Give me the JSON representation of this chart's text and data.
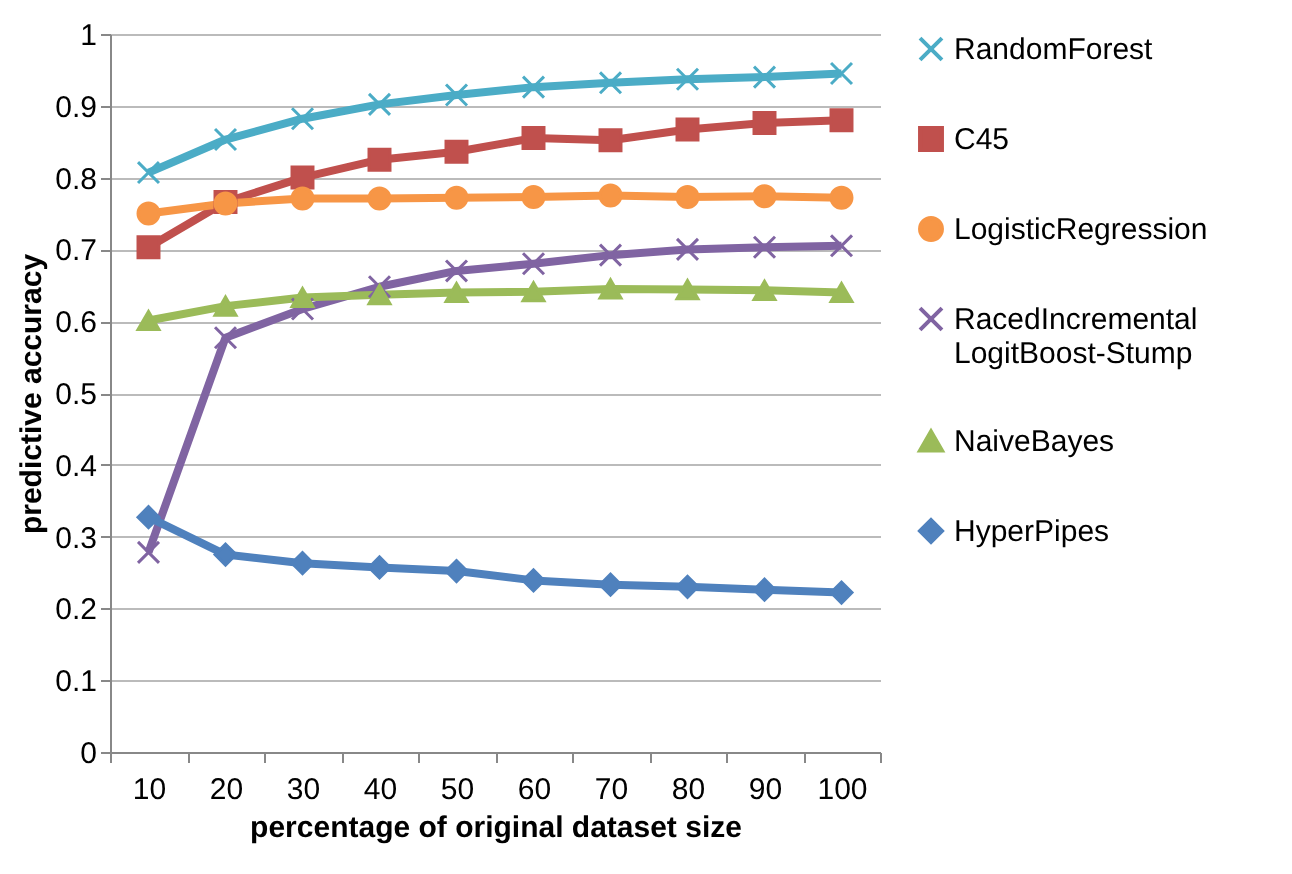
{
  "chart_data": {
    "type": "line",
    "xlabel": "percentage of original dataset size",
    "ylabel": "predictive accuracy",
    "categories": [
      "10",
      "20",
      "30",
      "40",
      "50",
      "60",
      "70",
      "80",
      "90",
      "100"
    ],
    "ylim": [
      0,
      1
    ],
    "yticks": [
      0,
      0.1,
      0.2,
      0.3,
      0.4,
      0.5,
      0.6,
      0.7,
      0.8,
      0.9,
      1
    ],
    "grid": "y",
    "legend": "right",
    "series": [
      {
        "name": "RandomForest",
        "color": "#4bacc6",
        "marker": "cross",
        "values": [
          0.807,
          0.853,
          0.882,
          0.902,
          0.915,
          0.926,
          0.932,
          0.937,
          0.94,
          0.945
        ]
      },
      {
        "name": "C45",
        "color": "#c0504d",
        "marker": "square",
        "values": [
          0.703,
          0.766,
          0.8,
          0.825,
          0.836,
          0.855,
          0.852,
          0.867,
          0.876,
          0.88
        ]
      },
      {
        "name": "LogisticRegression",
        "color": "#f79646",
        "marker": "circle",
        "values": [
          0.75,
          0.764,
          0.771,
          0.771,
          0.772,
          0.773,
          0.775,
          0.773,
          0.774,
          0.772
        ]
      },
      {
        "name": "RacedIncremental LogitBoost-Stump",
        "color": "#8064a2",
        "marker": "cross",
        "values": [
          0.278,
          0.577,
          0.617,
          0.648,
          0.67,
          0.68,
          0.692,
          0.7,
          0.703,
          0.705
        ]
      },
      {
        "name": "NaiveBayes",
        "color": "#9bbb59",
        "marker": "triangle",
        "values": [
          0.601,
          0.621,
          0.633,
          0.637,
          0.64,
          0.641,
          0.645,
          0.644,
          0.643,
          0.64
        ]
      },
      {
        "name": "HyperPipes",
        "color": "#4f81bd",
        "marker": "diamond",
        "values": [
          0.327,
          0.275,
          0.263,
          0.257,
          0.252,
          0.239,
          0.233,
          0.23,
          0.226,
          0.222
        ]
      }
    ]
  }
}
